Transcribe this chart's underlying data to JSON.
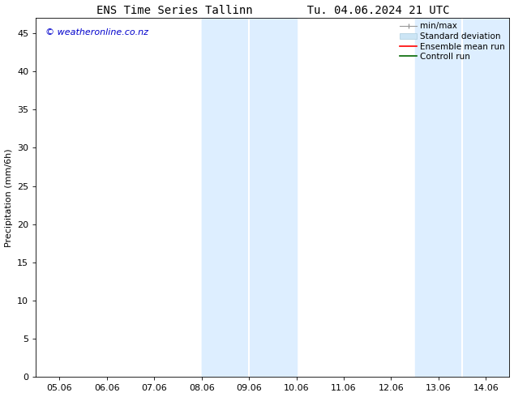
{
  "title": "ENS Time Series Tallinn        Tu. 04.06.2024 21 UTC",
  "ylabel": "Precipitation (mm/6h)",
  "xlabel": "",
  "ylim": [
    0,
    47
  ],
  "yticks": [
    0,
    5,
    10,
    15,
    20,
    25,
    30,
    35,
    40,
    45
  ],
  "xtick_labels": [
    "05.06",
    "06.06",
    "07.06",
    "08.06",
    "09.06",
    "10.06",
    "11.06",
    "12.06",
    "13.06",
    "14.06"
  ],
  "xtick_positions": [
    0,
    1,
    2,
    3,
    4,
    5,
    6,
    7,
    8,
    9
  ],
  "xlim": [
    -0.5,
    9.5
  ],
  "background_color": "#ffffff",
  "plot_bg_color": "#ffffff",
  "shaded_regions": [
    {
      "x_start": 3.0,
      "x_end": 3.5,
      "color": "#ddeeff"
    },
    {
      "x_start": 3.5,
      "x_end": 4.5,
      "color": "#ddeeff"
    },
    {
      "x_start": 7.5,
      "x_end": 8.0,
      "color": "#ddeeff"
    },
    {
      "x_start": 8.0,
      "x_end": 8.5,
      "color": "#ddeeff"
    }
  ],
  "watermark": "© weatheronline.co.nz",
  "watermark_color": "#0000cc",
  "watermark_fontsize": 8,
  "title_fontsize": 10,
  "axis_fontsize": 8,
  "ylabel_fontsize": 8,
  "legend_fontsize": 7.5
}
